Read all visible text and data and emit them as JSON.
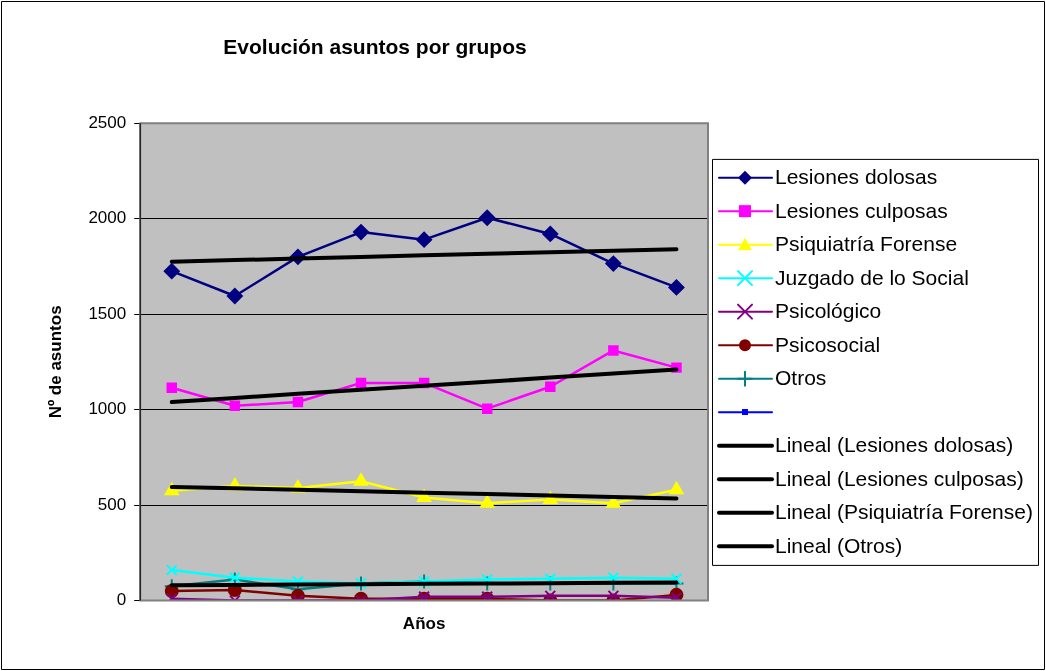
{
  "chart_data": {
    "type": "line",
    "title": "Evolución asuntos por grupos",
    "xlabel": "Años",
    "ylabel": "Nº de asuntos",
    "categories": [
      null,
      null,
      null,
      null,
      null,
      null,
      null,
      null,
      null
    ],
    "ylim": [
      0,
      2500
    ],
    "yticks": [
      0,
      500,
      1000,
      1500,
      2000,
      2500
    ],
    "tick_labels": "y",
    "grid": "y",
    "legend": "right",
    "series": [
      {
        "name": "Lesiones dolosas",
        "color": "#000080",
        "marker": "diamond",
        "values": [
          1725,
          1595,
          1800,
          1930,
          1890,
          2005,
          1920,
          1765,
          1640
        ]
      },
      {
        "name": "Lesiones culposas",
        "color": "#ff00ff",
        "marker": "square",
        "values": [
          1115,
          1020,
          1040,
          1140,
          1140,
          1005,
          1120,
          1310,
          1220
        ]
      },
      {
        "name": "Psiquiatría Forense",
        "color": "#ffff00",
        "marker": "triangle",
        "values": [
          575,
          600,
          590,
          625,
          540,
          510,
          530,
          510,
          580
        ]
      },
      {
        "name": "Juzgado de lo Social",
        "color": "#00ffff",
        "marker": "cross",
        "values": [
          160,
          120,
          100,
          90,
          100,
          110,
          115,
          120,
          115
        ]
      },
      {
        "name": "Psicológico",
        "color": "#800080",
        "marker": "cross",
        "values": [
          10,
          0,
          0,
          0,
          20,
          20,
          25,
          25,
          15
        ]
      },
      {
        "name": "Psicosocial",
        "color": "#800000",
        "marker": "circle",
        "values": [
          50,
          55,
          25,
          10,
          10,
          10,
          0,
          0,
          30
        ]
      },
      {
        "name": "Otros",
        "color": "#008080",
        "marker": "plus",
        "values": [
          75,
          110,
          60,
          90,
          100,
          90,
          90,
          90,
          90
        ]
      },
      {
        "color": "#0000ff",
        "marker": "square",
        "values": [
          null,
          null,
          null,
          null,
          null,
          null,
          null,
          null,
          null
        ]
      },
      {
        "name": "Lineal (Lesiones dolosas)",
        "type": "line",
        "color": "#000000",
        "marker": "none",
        "values": [
          1775,
          1783,
          1791,
          1799,
          1808,
          1816,
          1824,
          1832,
          1840
        ]
      },
      {
        "name": "Lineal (Lesiones culposas)",
        "type": "line",
        "color": "#000000",
        "marker": "none",
        "values": [
          1040,
          1061,
          1083,
          1104,
          1125,
          1146,
          1168,
          1189,
          1210
        ]
      },
      {
        "name": "Lineal (Psiquiatría Forense)",
        "type": "line",
        "color": "#000000",
        "marker": "none",
        "values": [
          595,
          588,
          580,
          573,
          565,
          558,
          550,
          543,
          535
        ]
      },
      {
        "name": "Lineal (Otros)",
        "type": "line",
        "color": "#000000",
        "marker": "none",
        "values": [
          80,
          82,
          84,
          86,
          88,
          89,
          91,
          93,
          95
        ]
      }
    ]
  }
}
